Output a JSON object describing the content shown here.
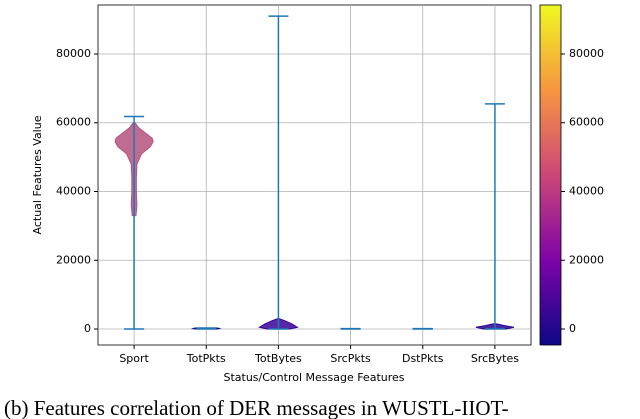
{
  "chart_data": {
    "type": "violin",
    "x_label": "Status/Control Message Features",
    "y_label": "Actual Features Value",
    "caption": "(b) Features correlation of DER messages in WUSTL-IIOT-",
    "categories": [
      "Sport",
      "TotPkts",
      "TotBytes",
      "SrcPkts",
      "DstPkts",
      "SrcBytes"
    ],
    "series": [
      {
        "name": "Sport",
        "min": 0,
        "max": 61800,
        "color": "#b5527e",
        "density_y": [
          33000,
          36000,
          40000,
          44000,
          48000,
          51000,
          53000,
          54500,
          55500,
          57000,
          58500,
          60000
        ],
        "density": [
          0.1,
          0.15,
          0.12,
          0.12,
          0.15,
          0.4,
          0.85,
          1.0,
          0.95,
          0.6,
          0.25,
          0.05
        ]
      },
      {
        "name": "TotPkts",
        "min": 0,
        "max": 300,
        "color": "#1a0a8c",
        "density_y": [
          0,
          150,
          300
        ],
        "density": [
          0.6,
          0.7,
          0.6
        ]
      },
      {
        "name": "TotBytes",
        "min": 0,
        "max": 91000,
        "color": "#3a049a",
        "density_y": [
          0,
          500,
          1500,
          2500,
          3000
        ],
        "density": [
          0.6,
          1.0,
          0.7,
          0.3,
          0.05
        ]
      },
      {
        "name": "SrcPkts",
        "min": 0,
        "max": 100,
        "color": "#1a0a8c",
        "density_y": [
          0,
          100
        ],
        "density": [
          0.5,
          0.5
        ]
      },
      {
        "name": "DstPkts",
        "min": 0,
        "max": 100,
        "color": "#1a0a8c",
        "density_y": [
          0,
          100
        ],
        "density": [
          0.5,
          0.5
        ]
      },
      {
        "name": "SrcBytes",
        "min": 0,
        "max": 65500,
        "color": "#2c0694",
        "density_y": [
          0,
          500,
          1000,
          1500
        ],
        "density": [
          0.6,
          1.0,
          0.5,
          0.1
        ]
      }
    ],
    "line_color": "#1f77b4",
    "ylim": [
      -4650,
      94250
    ],
    "yticks": [
      0,
      20000,
      40000,
      60000,
      80000
    ],
    "grid": true,
    "colormap": [
      "#0d0887",
      "#7e03a8",
      "#cc4778",
      "#f89540",
      "#f0f921"
    ],
    "clim": [
      -4650,
      94250
    ],
    "cticks": [
      0,
      20000,
      40000,
      60000,
      80000
    ]
  }
}
